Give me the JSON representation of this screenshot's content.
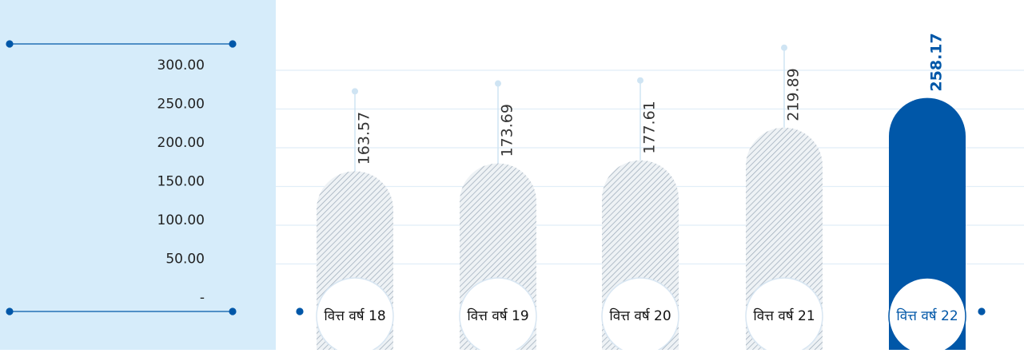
{
  "chart_data": {
    "type": "bar",
    "categories": [
      "वित्त वर्ष 18",
      "वित्त वर्ष 19",
      "वित्त वर्ष 20",
      "वित्त वर्ष 21",
      "वित्त वर्ष 22"
    ],
    "values": [
      163.57,
      173.69,
      177.61,
      219.89,
      258.17
    ],
    "ylim": [
      0,
      300
    ],
    "yticks": [
      {
        "value": 0,
        "label": "-"
      },
      {
        "value": 50,
        "label": "50.00"
      },
      {
        "value": 100,
        "label": "100.00"
      },
      {
        "value": 150,
        "label": "150.00"
      },
      {
        "value": 200,
        "label": "200.00"
      },
      {
        "value": 250,
        "label": "250.00"
      },
      {
        "value": 300,
        "label": "300.00"
      }
    ],
    "grid": true,
    "color": "#0057a8"
  }
}
